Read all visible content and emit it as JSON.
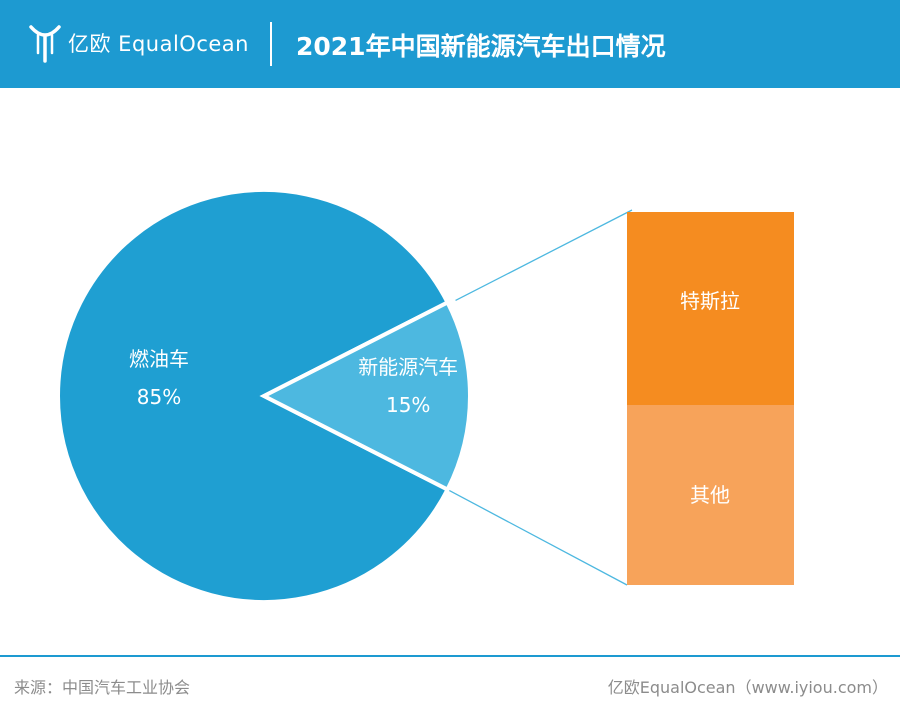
{
  "header": {
    "brand": "亿欧 EqualOcean",
    "title": "2021年中国新能源汽车出口情况"
  },
  "chart_data": {
    "type": "pie",
    "slices": [
      {
        "label": "燃油车",
        "value": 85,
        "display": "85%",
        "color": "#1f9fd2"
      },
      {
        "label": "新能源汽车",
        "value": 15,
        "display": "15%",
        "color": "#4db8e0"
      }
    ],
    "breakdown": {
      "of": "新能源汽车",
      "segments": [
        {
          "label": "特斯拉",
          "color": "#f58c20"
        },
        {
          "label": "其他",
          "color": "#f7a35a"
        }
      ]
    }
  },
  "footer": {
    "source": "来源：中国汽车工业协会",
    "credit": "亿欧EqualOcean（www.iyiou.com）"
  }
}
